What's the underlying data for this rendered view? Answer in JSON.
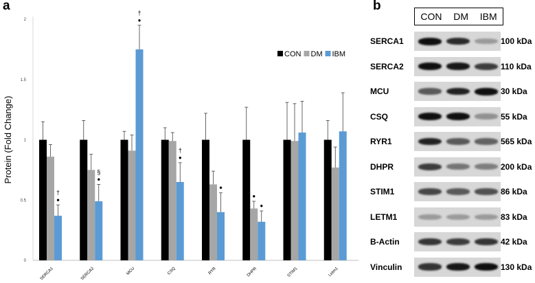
{
  "panel_a": {
    "letter": "a",
    "chart_data": {
      "type": "bar",
      "ylabel": "Protein (Fold Change)",
      "ylim": [
        0,
        2
      ],
      "yticks": [
        "0",
        "0.5",
        "1",
        "1.5",
        "2"
      ],
      "categories": [
        "SERCA1",
        "SERCA2",
        "MCU",
        "CSQ",
        "RYR",
        "DHPR",
        "STIM1",
        "Letm1"
      ],
      "series": [
        {
          "name": "CON",
          "color": "#000000",
          "values": [
            1,
            1,
            1,
            1,
            1,
            1,
            1,
            1
          ],
          "errors": [
            0.15,
            0.16,
            0.07,
            0.1,
            0.22,
            0.27,
            0.31,
            0.16
          ]
        },
        {
          "name": "DM",
          "color": "#a6a6a6",
          "values": [
            0.86,
            0.75,
            0.91,
            0.99,
            0.63,
            0.43,
            0.99,
            0.77
          ],
          "errors": [
            0.1,
            0.13,
            0.13,
            0.07,
            0.11,
            0.06,
            0.31,
            0.17
          ]
        },
        {
          "name": "IBM",
          "color": "#5b9bd5",
          "values": [
            0.37,
            0.49,
            1.75,
            0.65,
            0.4,
            0.32,
            1.06,
            1.07
          ],
          "errors": [
            0.09,
            0.14,
            0.2,
            0.16,
            0.16,
            0.09,
            0.26,
            0.32
          ]
        }
      ],
      "annotations": [
        {
          "category": "SERCA1",
          "series": "IBM",
          "symbols": [
            "†",
            "●"
          ]
        },
        {
          "category": "SERCA2",
          "series": "IBM",
          "symbols": [
            "§",
            "●"
          ]
        },
        {
          "category": "MCU",
          "series": "IBM",
          "symbols": [
            "†",
            "●"
          ]
        },
        {
          "category": "CSQ",
          "series": "IBM",
          "symbols": [
            "†",
            "●"
          ]
        },
        {
          "category": "RYR",
          "series": "IBM",
          "symbols": [
            "●"
          ]
        },
        {
          "category": "DHPR",
          "series": "DM",
          "symbols": [
            "●"
          ]
        },
        {
          "category": "DHPR",
          "series": "IBM",
          "symbols": [
            "●"
          ]
        }
      ],
      "legend": "top-right",
      "legend_labels": [
        "CON",
        "DM",
        "IBM"
      ]
    }
  },
  "panel_b": {
    "letter": "b",
    "lanes": [
      "CON",
      "DM",
      "IBM"
    ],
    "blots": [
      {
        "protein": "SERCA1",
        "kda": "100 kDa",
        "intensity": [
          1.0,
          0.85,
          0.25
        ]
      },
      {
        "protein": "SERCA2",
        "kda": "110 kDa",
        "intensity": [
          1.0,
          0.95,
          0.75
        ]
      },
      {
        "protein": "MCU",
        "kda": "30 kDa",
        "intensity": [
          0.6,
          0.9,
          1.0
        ]
      },
      {
        "protein": "CSQ",
        "kda": "55 kDa",
        "intensity": [
          1.0,
          1.0,
          0.3
        ]
      },
      {
        "protein": "RYR1",
        "kda": "565 kDa",
        "intensity": [
          0.9,
          0.6,
          0.55
        ]
      },
      {
        "protein": "DHPR",
        "kda": "200 kDa",
        "intensity": [
          0.75,
          0.45,
          0.4
        ]
      },
      {
        "protein": "STIM1",
        "kda": "86 kDa",
        "intensity": [
          0.7,
          0.6,
          0.65
        ]
      },
      {
        "protein": "LETM1",
        "kda": "83 kDa",
        "intensity": [
          0.25,
          0.25,
          0.25
        ]
      },
      {
        "protein": "B-Actin",
        "kda": "42 kDa",
        "intensity": [
          0.8,
          0.75,
          0.8
        ]
      },
      {
        "protein": "Vinculin",
        "kda": "130 kDa",
        "intensity": [
          0.8,
          0.95,
          1.0
        ]
      }
    ]
  }
}
